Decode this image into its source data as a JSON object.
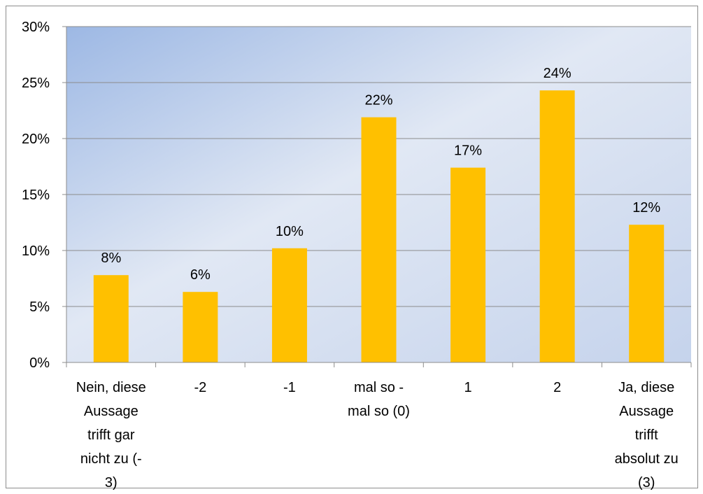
{
  "chart_data": {
    "type": "bar",
    "categories": [
      [
        "Nein, diese",
        "Aussage",
        "trifft gar",
        "nicht zu (-",
        "3)"
      ],
      [
        "-2"
      ],
      [
        "-1"
      ],
      [
        "mal so -",
        "mal so (0)"
      ],
      [
        "1"
      ],
      [
        "2"
      ],
      [
        "Ja, diese",
        "Aussage",
        "trifft",
        "absolut zu",
        "(3)"
      ]
    ],
    "values": [
      0.078,
      0.063,
      0.102,
      0.219,
      0.174,
      0.243,
      0.123
    ],
    "data_labels": [
      "8%",
      "6%",
      "10%",
      "22%",
      "17%",
      "24%",
      "12%"
    ],
    "ylim": [
      0,
      0.3
    ],
    "yticks": [
      0,
      0.05,
      0.1,
      0.15,
      0.2,
      0.25,
      0.3
    ],
    "ytick_labels": [
      "0%",
      "5%",
      "10%",
      "15%",
      "20%",
      "25%",
      "30%"
    ],
    "grid": true,
    "legend": "none",
    "colors": {
      "bar": "#FFC000",
      "plot_bg_start": "#9DB8E4",
      "plot_bg_end": "#DCE6F4",
      "grid": "#8C8C8C",
      "axis": "#8C8C8C"
    }
  }
}
